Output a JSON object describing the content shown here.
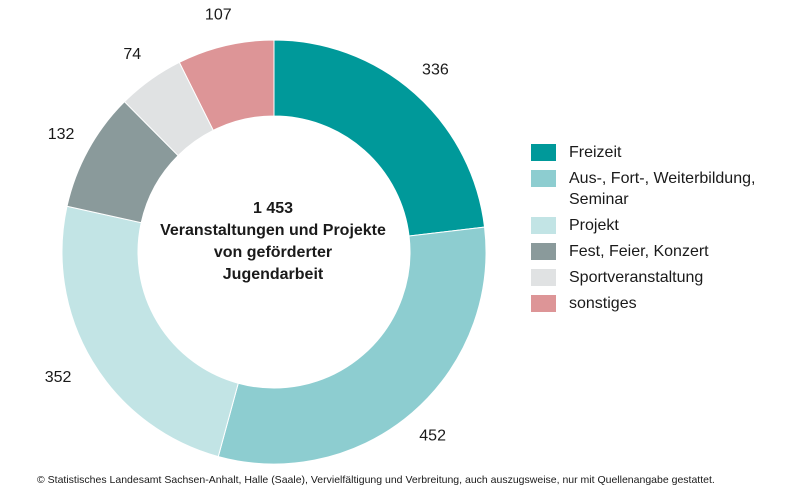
{
  "chart_data": {
    "type": "pie",
    "variant": "donut",
    "center_text": {
      "line1": "1 453",
      "line2": "Veranstaltungen und Projekte",
      "line3": "von geförderter",
      "line4": "Jugendarbeit"
    },
    "slices": [
      {
        "name": "Freizeit",
        "value": 336,
        "label": "336",
        "color": "#00999a"
      },
      {
        "name": "Aus-, Fort-, Weiterbildung, Seminar",
        "value": 452,
        "label": "452",
        "color": "#8dcdd0"
      },
      {
        "name": "Projekt",
        "value": 352,
        "label": "352",
        "color": "#c2e4e5"
      },
      {
        "name": "Fest, Feier, Konzert",
        "value": 132,
        "label": "132",
        "color": "#8a9a9b"
      },
      {
        "name": "Sportveranstaltung",
        "value": 74,
        "label": "74",
        "color": "#e0e2e3"
      },
      {
        "name": "sonstiges",
        "value": 107,
        "label": "107",
        "color": "#dd9597"
      }
    ],
    "legend": {
      "placement": "right",
      "items": [
        {
          "label": "Freizeit",
          "color": "#00999a"
        },
        {
          "label": "Aus-, Fort-, Weiterbildung,",
          "label2": "Seminar",
          "color": "#8dcdd0"
        },
        {
          "label": "Projekt",
          "color": "#c2e4e5"
        },
        {
          "label": "Fest, Feier, Konzert",
          "color": "#8a9a9b"
        },
        {
          "label": "Sportveranstaltung",
          "color": "#e0e2e3"
        },
        {
          "label": "sonstiges",
          "color": "#dd9597"
        }
      ]
    }
  },
  "footer": "© Statistisches Landesamt Sachsen-Anhalt, Halle (Saale), Vervielfältigung und Verbreitung, auch auszugsweise, nur mit Quellenangabe gestattet."
}
